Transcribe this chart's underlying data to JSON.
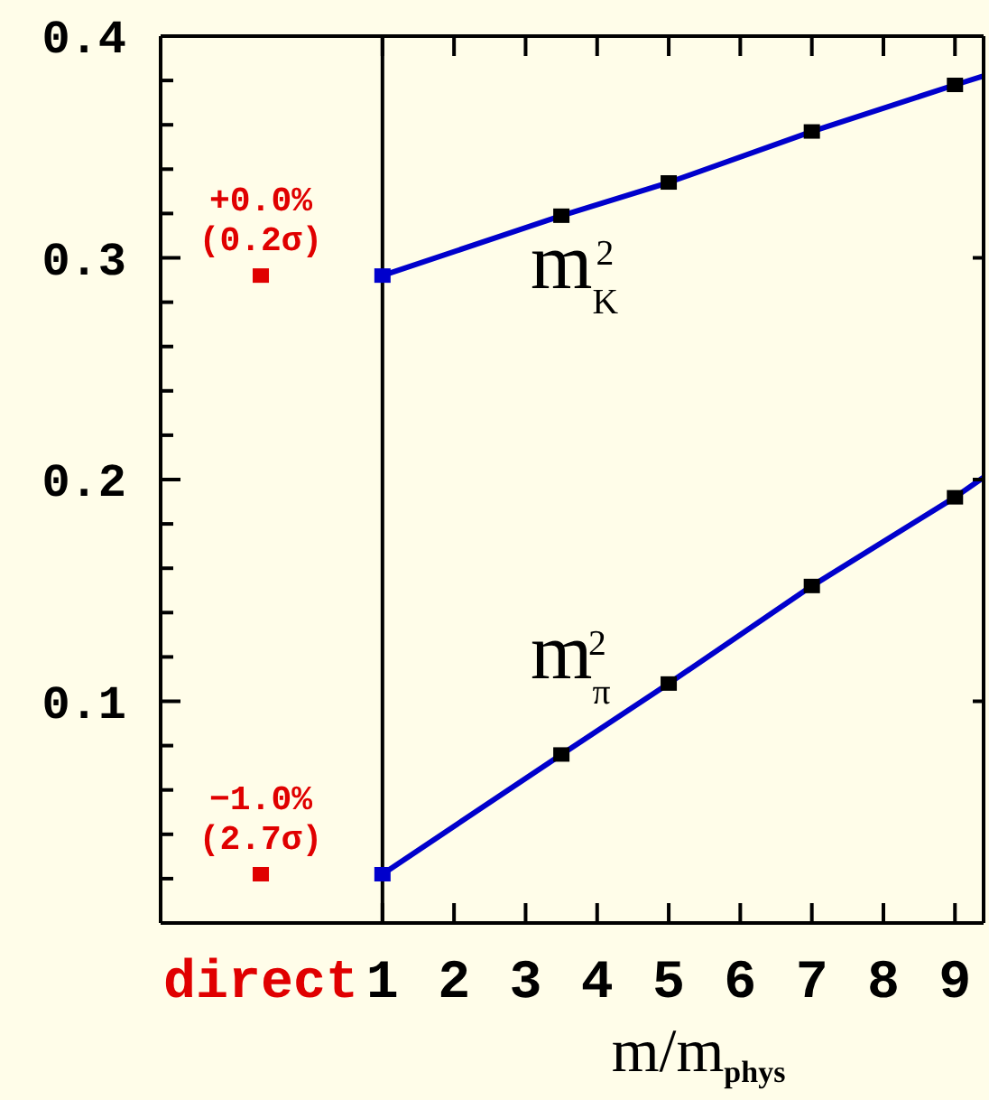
{
  "chart_data": {
    "type": "line",
    "xlabel": "m/m$_{phys}$",
    "xlim": [
      -2.1,
      9.4
    ],
    "xticks": [
      {
        "value": -0.7,
        "label": "direct"
      },
      1,
      2,
      3,
      4,
      5,
      6,
      7,
      8,
      9
    ],
    "ylim": [
      0,
      0.4
    ],
    "yticks": [
      {
        "value": 0.02,
        "label": null
      },
      {
        "value": 0.04,
        "label": null
      },
      {
        "value": 0.06,
        "label": null
      },
      {
        "value": 0.08,
        "label": null
      },
      0.1,
      {
        "value": 0.12,
        "label": null
      },
      {
        "value": 0.14,
        "label": null
      },
      {
        "value": 0.16,
        "label": null
      },
      {
        "value": 0.18,
        "label": null
      },
      0.2,
      {
        "value": 0.22,
        "label": null
      },
      {
        "value": 0.24,
        "label": null
      },
      {
        "value": 0.26,
        "label": null
      },
      {
        "value": 0.28,
        "label": null
      },
      0.3,
      {
        "value": 0.32,
        "label": null
      },
      {
        "value": 0.34,
        "label": null
      },
      {
        "value": 0.36,
        "label": null
      },
      {
        "value": 0.38,
        "label": null
      },
      0.4
    ],
    "series": [
      {
        "name": "m$_{K}$$^{2}$",
        "color": "#0000cc",
        "x": [
          1,
          3.5,
          5,
          7,
          9,
          9.4
        ],
        "values": [
          0.292,
          0.319,
          0.334,
          0.357,
          0.378,
          0.382
        ]
      },
      {
        "name": "m$_{π}$$^{2}$",
        "color": "#0000cc",
        "x": [
          1,
          3.5,
          5,
          7,
          9,
          9.4
        ],
        "values": [
          0.022,
          0.076,
          0.108,
          0.152,
          0.192,
          0.201
        ]
      },
      {
        "type": "scatter",
        "color": "#0000cc",
        "marker": "square",
        "x": [
          1,
          1
        ],
        "values": [
          0.292,
          0.022
        ]
      },
      {
        "type": "scatter",
        "color": "#000000",
        "marker": "square",
        "x": [
          3.5,
          5,
          7,
          9,
          3.5,
          5,
          7,
          9
        ],
        "values": [
          0.319,
          0.334,
          0.357,
          0.378,
          0.076,
          0.108,
          0.152,
          0.192
        ]
      },
      {
        "type": "scatter",
        "color": "#e00000",
        "marker": "square",
        "x": [
          -0.7,
          -0.7
        ],
        "values": [
          0.292,
          0.022
        ],
        "value_labels": [
          "+0.0% (0.2σ)",
          "−1.0% (2.7σ)"
        ]
      }
    ],
    "ref_lines": [
      {
        "axis": "x",
        "value": 1,
        "color": "#000000"
      }
    ]
  }
}
